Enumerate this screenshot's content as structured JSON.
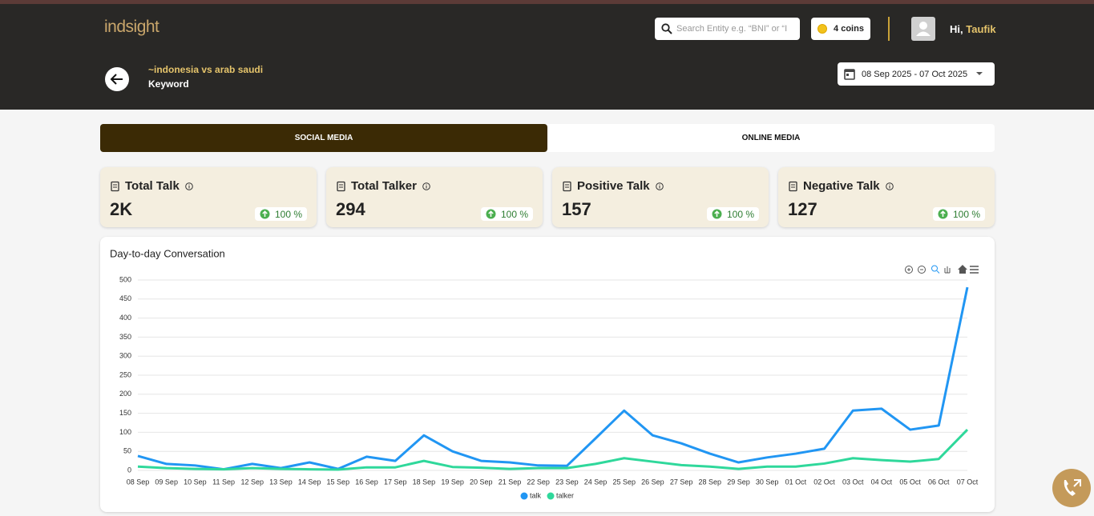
{
  "header": {
    "logo": "indsight",
    "search_placeholder": "Search Entity e.g. “BNI” or “I",
    "coins": "4 coins",
    "greeting": "Hi,",
    "user": "Taufik"
  },
  "topic": {
    "title": "~indonesia vs arab saudi",
    "type": "Keyword",
    "date_range": "08 Sep 2025 - 07 Oct 2025"
  },
  "tabs": [
    "SOCIAL MEDIA",
    "ONLINE MEDIA"
  ],
  "cards": [
    {
      "title": "Total Talk",
      "value": "2K",
      "change": "100 %"
    },
    {
      "title": "Total Talker",
      "value": 294,
      "change": "100 %"
    },
    {
      "title": "Positive Talk",
      "value": 157,
      "change": "100 %"
    },
    {
      "title": "Negative Talk",
      "value": 127,
      "change": "100 %"
    }
  ],
  "chart_data": {
    "type": "line",
    "title": "Day-to-day Conversation",
    "categories": [
      "08 Sep",
      "09 Sep",
      "10 Sep",
      "11 Sep",
      "12 Sep",
      "13 Sep",
      "14 Sep",
      "15 Sep",
      "16 Sep",
      "17 Sep",
      "18 Sep",
      "19 Sep",
      "20 Sep",
      "21 Sep",
      "22 Sep",
      "23 Sep",
      "24 Sep",
      "25 Sep",
      "26 Sep",
      "27 Sep",
      "28 Sep",
      "29 Sep",
      "30 Sep",
      "01 Oct",
      "02 Oct",
      "03 Oct",
      "04 Oct",
      "05 Oct",
      "06 Oct",
      "07 Oct"
    ],
    "series": [
      {
        "name": "talk",
        "color": "#2196f3",
        "values": [
          38,
          17,
          13,
          3,
          17,
          6,
          21,
          4,
          36,
          25,
          92,
          50,
          25,
          21,
          13,
          12,
          84,
          157,
          92,
          71,
          44,
          21,
          34,
          44,
          57,
          157,
          162,
          107,
          118,
          481
        ]
      },
      {
        "name": "talker",
        "color": "#2fd89b",
        "values": [
          10,
          6,
          4,
          3,
          6,
          4,
          3,
          2,
          8,
          8,
          25,
          9,
          7,
          4,
          6,
          6,
          17,
          32,
          23,
          14,
          10,
          4,
          10,
          10,
          18,
          32,
          27,
          23,
          30,
          107
        ]
      }
    ],
    "ylim": [
      0,
      500
    ],
    "yticks": [
      0,
      50,
      100,
      150,
      200,
      250,
      300,
      350,
      400,
      450,
      500
    ],
    "grid": true,
    "legend": "bottom"
  }
}
